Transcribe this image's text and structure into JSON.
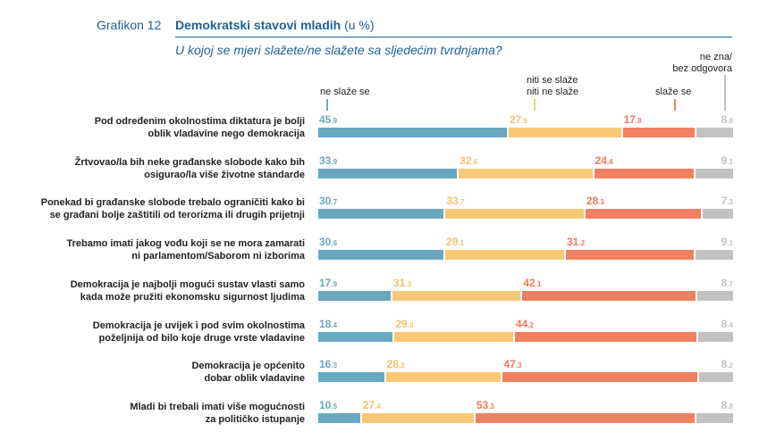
{
  "header": {
    "figure_label": "Grafikon 12",
    "title": "Demokratski stavovi mladih",
    "title_unit": "(u %)",
    "subtitle": "U kojoj se mjeri slažete/ne slažete sa sljedećim tvrdnjama?"
  },
  "chart_data": {
    "type": "bar",
    "orientation": "horizontal",
    "stacked": true,
    "title": "Demokratski stavovi mladih (u %)",
    "subtitle": "U kojoj se mjeri slažete/ne slažete sa sljedećim tvrdnjama?",
    "xlabel": "",
    "ylabel": "",
    "xlim": [
      0,
      100
    ],
    "grid": false,
    "legend_position": "top",
    "categories": [
      [
        "Pod određenim okolnostima diktatura je bolji",
        "oblik vladavine nego demokracija"
      ],
      [
        "Žrtvovao/la bih neke građanske slobode kako bih",
        "osigurao/la više životne standarde"
      ],
      [
        "Ponekad bi građanske slobode trebalo ograničiti kako bi",
        "se građani bolje zaštitili od terorizma ili drugih prijetnji"
      ],
      [
        "Trebamo imati jakog vođu koji se ne mora zamarati",
        "ni parlamentom/Saborom ni izborima"
      ],
      [
        "Demokracija je najbolji mogući sustav vlasti samo",
        "kada može pružiti ekonomsku sigurnost ljudima"
      ],
      [
        "Demokracija je uvijek i pod svim okolnostima",
        "poželjnija od bilo koje druge vrste vladavine"
      ],
      [
        "Demokracija je općenito",
        "dobar oblik vladavine"
      ],
      [
        "Mladi bi trebali imati više mogućnosti",
        "za političko istupanje"
      ]
    ],
    "series": [
      {
        "name": "ne slaže se",
        "color": "#6aa8c0",
        "values": [
          45.9,
          33.9,
          30.7,
          30.6,
          17.9,
          18.4,
          16.3,
          10.5
        ]
      },
      {
        "name": "niti se slaže niti ne slaže",
        "color": "#f9c876",
        "values": [
          27.5,
          32.6,
          33.7,
          29.1,
          31.3,
          29.0,
          28.2,
          27.4
        ]
      },
      {
        "name": "slaže se",
        "color": "#ef8062",
        "values": [
          17.8,
          24.4,
          28.3,
          31.2,
          42.1,
          44.2,
          47.3,
          53.3
        ]
      },
      {
        "name": "ne zna/ bez odgovora",
        "color": "#c4c1c1",
        "values": [
          8.8,
          9.1,
          7.3,
          9.1,
          8.7,
          8.4,
          8.2,
          8.8
        ]
      }
    ],
    "legend_lines": [
      [
        "ne slaže se"
      ],
      [
        "niti se slaže",
        "niti ne slaže"
      ],
      [
        "slaže se"
      ],
      [
        "ne zna/",
        "bez odgovora"
      ]
    ]
  }
}
